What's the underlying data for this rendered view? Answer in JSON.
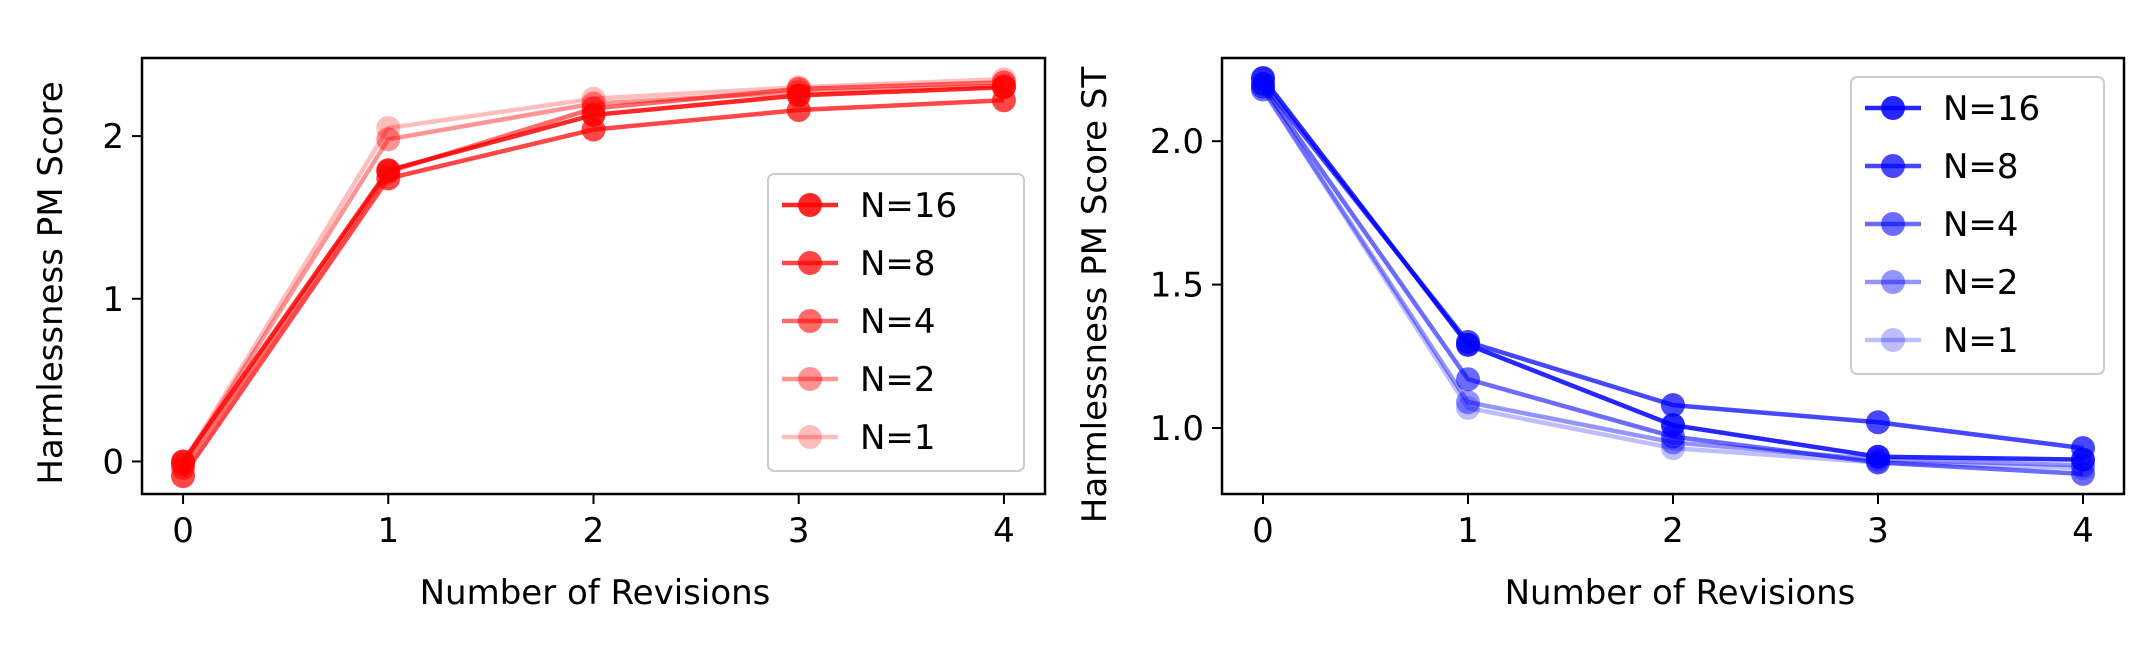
{
  "chart_data": [
    {
      "type": "line",
      "title": "",
      "xlabel": "Number of Revisions",
      "ylabel": "Harmlessness PM Score",
      "x": [
        0,
        1,
        2,
        3,
        4
      ],
      "xticks": [
        "0",
        "1",
        "2",
        "3",
        "4"
      ],
      "yticks": [
        "0",
        "1",
        "2"
      ],
      "xlim": [
        -0.2,
        4.2
      ],
      "ylim": [
        -0.2,
        2.48
      ],
      "grid": false,
      "legend_position": "center-right",
      "series": [
        {
          "name": "N=16",
          "color": "#ff0000",
          "opacity": 0.85,
          "values": [
            0.0,
            1.79,
            2.13,
            2.25,
            2.3
          ]
        },
        {
          "name": "N=8",
          "color": "#ff0000",
          "opacity": 0.72,
          "values": [
            -0.09,
            1.74,
            2.04,
            2.16,
            2.22
          ]
        },
        {
          "name": "N=4",
          "color": "#ff0000",
          "opacity": 0.58,
          "values": [
            -0.04,
            1.78,
            2.17,
            2.29,
            2.33
          ]
        },
        {
          "name": "N=2",
          "color": "#ff0000",
          "opacity": 0.42,
          "values": [
            -0.02,
            1.98,
            2.2,
            2.27,
            2.31
          ]
        },
        {
          "name": "N=1",
          "color": "#ff0000",
          "opacity": 0.26,
          "values": [
            -0.01,
            2.05,
            2.23,
            2.3,
            2.35
          ]
        }
      ]
    },
    {
      "type": "line",
      "title": "",
      "xlabel": "Number of Revisions",
      "ylabel": "Harmlessness PM Score ST",
      "x": [
        0,
        1,
        2,
        3,
        4
      ],
      "xticks": [
        "0",
        "1",
        "2",
        "3",
        "4"
      ],
      "yticks": [
        "1.0",
        "1.5",
        "2.0"
      ],
      "xlim": [
        -0.2,
        4.2
      ],
      "ylim": [
        0.77,
        2.29
      ],
      "grid": false,
      "legend_position": "upper-right",
      "series": [
        {
          "name": "N=16",
          "color": "#0000ff",
          "opacity": 0.85,
          "values": [
            2.22,
            1.29,
            1.01,
            0.9,
            0.89
          ]
        },
        {
          "name": "N=8",
          "color": "#0000ff",
          "opacity": 0.72,
          "values": [
            2.2,
            1.3,
            1.08,
            1.02,
            0.93
          ]
        },
        {
          "name": "N=4",
          "color": "#0000ff",
          "opacity": 0.58,
          "values": [
            2.19,
            1.17,
            0.97,
            0.88,
            0.84
          ]
        },
        {
          "name": "N=2",
          "color": "#0000ff",
          "opacity": 0.42,
          "values": [
            2.18,
            1.09,
            0.95,
            0.89,
            0.87
          ]
        },
        {
          "name": "N=1",
          "color": "#0000ff",
          "opacity": 0.26,
          "values": [
            2.18,
            1.07,
            0.93,
            0.88,
            0.86
          ]
        }
      ]
    }
  ]
}
